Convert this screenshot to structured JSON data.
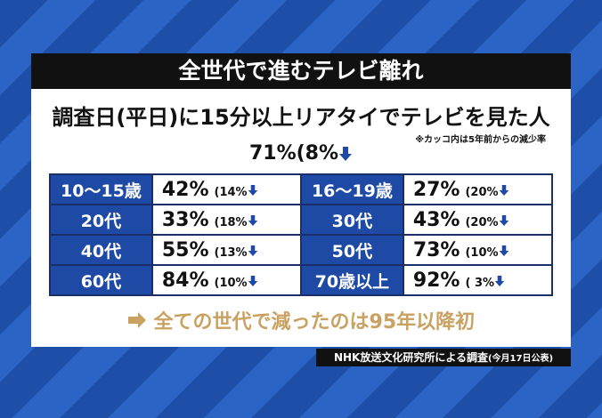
{
  "header": {
    "title": "全世代で進むテレビ離れ",
    "subtitle": "調査日(平日)に15分以上リアタイでテレビを見た人",
    "note": "※カッコ内は5年前からの減少率"
  },
  "overall": {
    "value": "71%",
    "change": "(8%"
  },
  "table": {
    "rows": [
      [
        "10〜15歳",
        "42%",
        "(14%",
        "16〜19歳",
        "27%",
        "(20%"
      ],
      [
        "20代",
        "33%",
        "(18%",
        "30代",
        "43%",
        "(20%"
      ],
      [
        "40代",
        "55%",
        "(13%",
        "50代",
        "73%",
        "(10%"
      ],
      [
        "60代",
        "84%",
        "(10%",
        "70歳以上",
        "92%",
        "( 3%"
      ]
    ]
  },
  "conclusion": "全ての世代で減ったのは95年以降初",
  "source": {
    "text": "NHK放送文化研究所による調査",
    "date": "(今月17日公表)"
  }
}
